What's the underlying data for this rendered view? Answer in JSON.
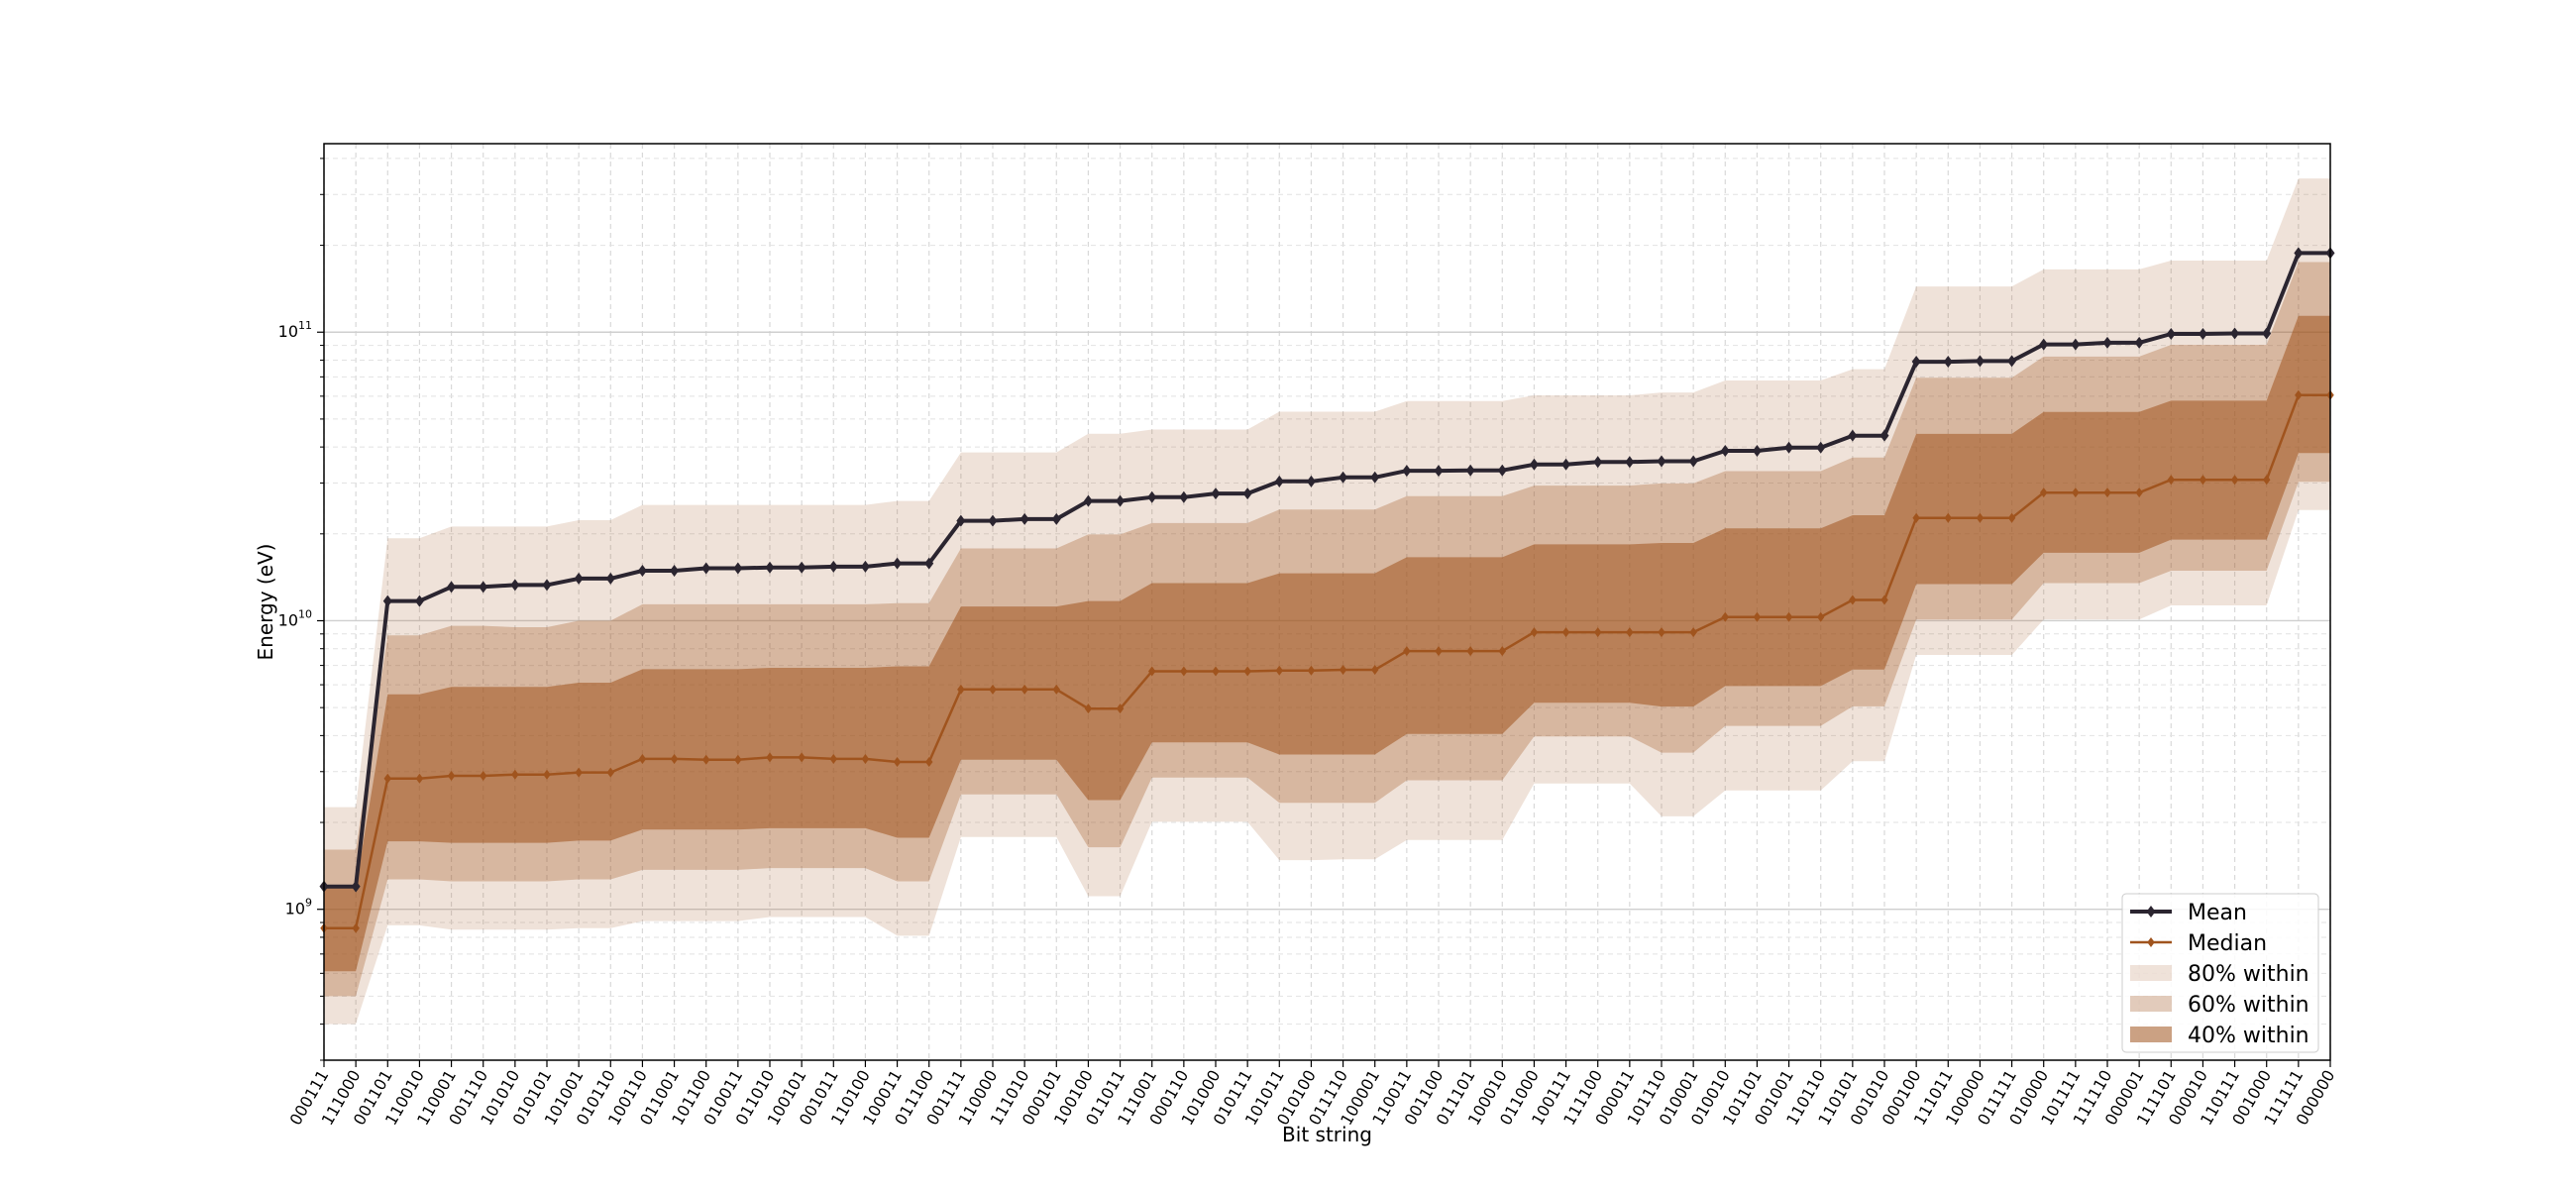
{
  "chart_data": {
    "type": "line",
    "xlabel": "Bit string",
    "ylabel": "Energy (eV)",
    "yscale": "log",
    "ylim": [
      300000000.0,
      450000000000.0
    ],
    "ytick_values": [
      1000000000.0,
      10000000000.0,
      100000000000.0
    ],
    "ytick_labels": [
      {
        "base": "10",
        "exp": "9"
      },
      {
        "base": "10",
        "exp": "10"
      },
      {
        "base": "10",
        "exp": "11"
      }
    ],
    "grid": true,
    "legend_position": "lower-right",
    "categories": [
      "000111",
      "111000",
      "001101",
      "110010",
      "110001",
      "001110",
      "101010",
      "010101",
      "101001",
      "010110",
      "100110",
      "011001",
      "101100",
      "010011",
      "011010",
      "100101",
      "001011",
      "110100",
      "100011",
      "011100",
      "001111",
      "110000",
      "111010",
      "000101",
      "100100",
      "011011",
      "111001",
      "000110",
      "101000",
      "010111",
      "101011",
      "010100",
      "011110",
      "100001",
      "110011",
      "001100",
      "011101",
      "100010",
      "011000",
      "100111",
      "111100",
      "000011",
      "101110",
      "010001",
      "010010",
      "101101",
      "001001",
      "110110",
      "110101",
      "001010",
      "000100",
      "111011",
      "100000",
      "011111",
      "010000",
      "101111",
      "111110",
      "000001",
      "111101",
      "000010",
      "110111",
      "001000",
      "111111",
      "000000"
    ],
    "series": [
      {
        "name": "Mean",
        "color": "#2b2530",
        "marker": "diamond",
        "values": [
          1200000000.0,
          1200000000.0,
          11700000000.0,
          11700000000.0,
          13100000000.0,
          13100000000.0,
          13300000000.0,
          13300000000.0,
          14000000000.0,
          14000000000.0,
          14900000000.0,
          14900000000.0,
          15200000000.0,
          15200000000.0,
          15300000000.0,
          15300000000.0,
          15400000000.0,
          15400000000.0,
          15800000000.0,
          15800000000.0,
          22200000000.0,
          22200000000.0,
          22500000000.0,
          22500000000.0,
          26000000000.0,
          26000000000.0,
          26800000000.0,
          26800000000.0,
          27600000000.0,
          27600000000.0,
          30400000000.0,
          30400000000.0,
          31400000000.0,
          31400000000.0,
          33100000000.0,
          33100000000.0,
          33200000000.0,
          33200000000.0,
          34800000000.0,
          34800000000.0,
          35500000000.0,
          35500000000.0,
          35700000000.0,
          35700000000.0,
          38800000000.0,
          38800000000.0,
          39800000000.0,
          39800000000.0,
          43800000000.0,
          43800000000.0,
          79000000000.0,
          79000000000.0,
          79400000000.0,
          79400000000.0,
          90700000000.0,
          90700000000.0,
          91900000000.0,
          91900000000.0,
          98600000000.0,
          98600000000.0,
          99000000000.0,
          99000000000.0,
          188000000000.0,
          188000000000.0
        ]
      },
      {
        "name": "Median",
        "color": "#a0541e",
        "marker": "diamond",
        "values": [
          860000000.0,
          860000000.0,
          2840000000.0,
          2840000000.0,
          2900000000.0,
          2900000000.0,
          2930000000.0,
          2930000000.0,
          2980000000.0,
          2980000000.0,
          3320000000.0,
          3320000000.0,
          3300000000.0,
          3300000000.0,
          3360000000.0,
          3360000000.0,
          3320000000.0,
          3320000000.0,
          3240000000.0,
          3240000000.0,
          5780000000.0,
          5780000000.0,
          5780000000.0,
          5780000000.0,
          4960000000.0,
          4960000000.0,
          6680000000.0,
          6680000000.0,
          6680000000.0,
          6680000000.0,
          6720000000.0,
          6720000000.0,
          6760000000.0,
          6760000000.0,
          7850000000.0,
          7850000000.0,
          7850000000.0,
          7850000000.0,
          9120000000.0,
          9120000000.0,
          9120000000.0,
          9120000000.0,
          9120000000.0,
          9120000000.0,
          10300000000.0,
          10300000000.0,
          10300000000.0,
          10300000000.0,
          11800000000.0,
          11800000000.0,
          22700000000.0,
          22700000000.0,
          22700000000.0,
          22700000000.0,
          27800000000.0,
          27800000000.0,
          27800000000.0,
          27800000000.0,
          30800000000.0,
          30800000000.0,
          30800000000.0,
          30800000000.0,
          60500000000.0,
          60500000000.0
        ]
      }
    ],
    "bands": [
      {
        "name": "80% within",
        "color": "#a0541e",
        "opacity": 0.17,
        "lower": [
          400000000.0,
          400000000.0,
          880000000.0,
          880000000.0,
          850000000.0,
          850000000.0,
          850000000.0,
          850000000.0,
          860000000.0,
          860000000.0,
          910000000.0,
          910000000.0,
          910000000.0,
          910000000.0,
          940000000.0,
          940000000.0,
          940000000.0,
          940000000.0,
          810000000.0,
          810000000.0,
          1780000000.0,
          1780000000.0,
          1780000000.0,
          1780000000.0,
          1110000000.0,
          1110000000.0,
          2010000000.0,
          2010000000.0,
          2010000000.0,
          2010000000.0,
          1480000000.0,
          1480000000.0,
          1490000000.0,
          1490000000.0,
          1740000000.0,
          1740000000.0,
          1740000000.0,
          1740000000.0,
          2730000000.0,
          2730000000.0,
          2730000000.0,
          2730000000.0,
          2100000000.0,
          2100000000.0,
          2580000000.0,
          2580000000.0,
          2580000000.0,
          2580000000.0,
          3260000000.0,
          3260000000.0,
          7610000000.0,
          7610000000.0,
          7610000000.0,
          7610000000.0,
          10100000000.0,
          10100000000.0,
          10100000000.0,
          10100000000.0,
          11300000000.0,
          11300000000.0,
          11300000000.0,
          11300000000.0,
          24200000000.0,
          24200000000.0
        ],
        "upper": [
          2260000000.0,
          2260000000.0,
          19300000000.0,
          19300000000.0,
          21200000000.0,
          21200000000.0,
          21200000000.0,
          21200000000.0,
          22300000000.0,
          22300000000.0,
          25200000000.0,
          25200000000.0,
          25200000000.0,
          25200000000.0,
          25200000000.0,
          25200000000.0,
          25200000000.0,
          25200000000.0,
          26000000000.0,
          26000000000.0,
          38300000000.0,
          38300000000.0,
          38300000000.0,
          38300000000.0,
          44500000000.0,
          44500000000.0,
          46000000000.0,
          46000000000.0,
          46000000000.0,
          46000000000.0,
          53000000000.0,
          53000000000.0,
          53000000000.0,
          53000000000.0,
          57700000000.0,
          57700000000.0,
          57700000000.0,
          57700000000.0,
          60400000000.0,
          60400000000.0,
          60400000000.0,
          60400000000.0,
          61800000000.0,
          61800000000.0,
          68000000000.0,
          68000000000.0,
          68000000000.0,
          68000000000.0,
          74400000000.0,
          74400000000.0,
          144000000000.0,
          144000000000.0,
          144000000000.0,
          144000000000.0,
          165000000000.0,
          165000000000.0,
          165000000000.0,
          165000000000.0,
          177000000000.0,
          177000000000.0,
          177000000000.0,
          177000000000.0,
          341000000000.0,
          341000000000.0
        ]
      },
      {
        "name": "60% within",
        "color": "#a0541e",
        "opacity": 0.3,
        "lower": [
          500000000.0,
          500000000.0,
          1270000000.0,
          1270000000.0,
          1250000000.0,
          1250000000.0,
          1250000000.0,
          1250000000.0,
          1270000000.0,
          1270000000.0,
          1370000000.0,
          1370000000.0,
          1370000000.0,
          1370000000.0,
          1390000000.0,
          1390000000.0,
          1390000000.0,
          1390000000.0,
          1250000000.0,
          1250000000.0,
          2500000000.0,
          2500000000.0,
          2500000000.0,
          2500000000.0,
          1640000000.0,
          1640000000.0,
          2860000000.0,
          2860000000.0,
          2860000000.0,
          2860000000.0,
          2340000000.0,
          2340000000.0,
          2340000000.0,
          2340000000.0,
          2800000000.0,
          2800000000.0,
          2800000000.0,
          2800000000.0,
          3970000000.0,
          3970000000.0,
          3970000000.0,
          3970000000.0,
          3490000000.0,
          3490000000.0,
          4320000000.0,
          4320000000.0,
          4320000000.0,
          4320000000.0,
          5050000000.0,
          5050000000.0,
          10100000000.0,
          10100000000.0,
          10100000000.0,
          10100000000.0,
          13500000000.0,
          13500000000.0,
          13500000000.0,
          13500000000.0,
          14900000000.0,
          14900000000.0,
          14900000000.0,
          14900000000.0,
          30300000000.0,
          30300000000.0
        ],
        "upper": [
          1610000000.0,
          1610000000.0,
          8900000000.0,
          8900000000.0,
          9600000000.0,
          9600000000.0,
          9500000000.0,
          9500000000.0,
          10000000000.0,
          10000000000.0,
          11400000000.0,
          11400000000.0,
          11400000000.0,
          11400000000.0,
          11400000000.0,
          11400000000.0,
          11400000000.0,
          11400000000.0,
          11500000000.0,
          11500000000.0,
          17800000000.0,
          17800000000.0,
          17800000000.0,
          17800000000.0,
          19900000000.0,
          19900000000.0,
          21800000000.0,
          21800000000.0,
          21800000000.0,
          21800000000.0,
          24300000000.0,
          24300000000.0,
          24300000000.0,
          24300000000.0,
          27000000000.0,
          27000000000.0,
          27000000000.0,
          27000000000.0,
          29400000000.0,
          29400000000.0,
          29400000000.0,
          29400000000.0,
          29900000000.0,
          29900000000.0,
          33000000000.0,
          33000000000.0,
          33000000000.0,
          33000000000.0,
          36800000000.0,
          36800000000.0,
          69500000000.0,
          69500000000.0,
          69500000000.0,
          69500000000.0,
          82300000000.0,
          82300000000.0,
          82300000000.0,
          82300000000.0,
          90400000000.0,
          90400000000.0,
          90400000000.0,
          90400000000.0,
          175000000000.0,
          175000000000.0
        ]
      },
      {
        "name": "40% within",
        "color": "#a0541e",
        "opacity": 0.55,
        "lower": [
          610000000.0,
          610000000.0,
          1720000000.0,
          1720000000.0,
          1700000000.0,
          1700000000.0,
          1700000000.0,
          1700000000.0,
          1730000000.0,
          1730000000.0,
          1890000000.0,
          1890000000.0,
          1890000000.0,
          1890000000.0,
          1910000000.0,
          1910000000.0,
          1910000000.0,
          1910000000.0,
          1770000000.0,
          1770000000.0,
          3300000000.0,
          3300000000.0,
          3300000000.0,
          3300000000.0,
          2390000000.0,
          2390000000.0,
          3790000000.0,
          3790000000.0,
          3790000000.0,
          3790000000.0,
          3440000000.0,
          3440000000.0,
          3440000000.0,
          3440000000.0,
          4050000000.0,
          4050000000.0,
          4050000000.0,
          4050000000.0,
          5200000000.0,
          5200000000.0,
          5200000000.0,
          5200000000.0,
          5040000000.0,
          5040000000.0,
          5940000000.0,
          5940000000.0,
          5940000000.0,
          5940000000.0,
          6770000000.0,
          6770000000.0,
          13400000000.0,
          13400000000.0,
          13400000000.0,
          13400000000.0,
          17200000000.0,
          17200000000.0,
          17200000000.0,
          17200000000.0,
          19100000000.0,
          19100000000.0,
          19100000000.0,
          19100000000.0,
          38100000000.0,
          38100000000.0
        ],
        "upper": [
          1190000000.0,
          1190000000.0,
          5560000000.0,
          5560000000.0,
          5900000000.0,
          5900000000.0,
          5900000000.0,
          5900000000.0,
          6100000000.0,
          6100000000.0,
          6790000000.0,
          6790000000.0,
          6790000000.0,
          6790000000.0,
          6870000000.0,
          6870000000.0,
          6870000000.0,
          6870000000.0,
          6950000000.0,
          6950000000.0,
          11200000000.0,
          11200000000.0,
          11200000000.0,
          11200000000.0,
          11700000000.0,
          11700000000.0,
          13500000000.0,
          13500000000.0,
          13500000000.0,
          13500000000.0,
          14600000000.0,
          14600000000.0,
          14600000000.0,
          14600000000.0,
          16600000000.0,
          16600000000.0,
          16600000000.0,
          16600000000.0,
          18400000000.0,
          18400000000.0,
          18400000000.0,
          18400000000.0,
          18600000000.0,
          18600000000.0,
          20900000000.0,
          20900000000.0,
          20900000000.0,
          20900000000.0,
          23200000000.0,
          23200000000.0,
          44400000000.0,
          44400000000.0,
          44400000000.0,
          44400000000.0,
          52900000000.0,
          52900000000.0,
          52900000000.0,
          52900000000.0,
          57900000000.0,
          57900000000.0,
          57900000000.0,
          57900000000.0,
          114000000000.0,
          114000000000.0
        ]
      }
    ]
  }
}
